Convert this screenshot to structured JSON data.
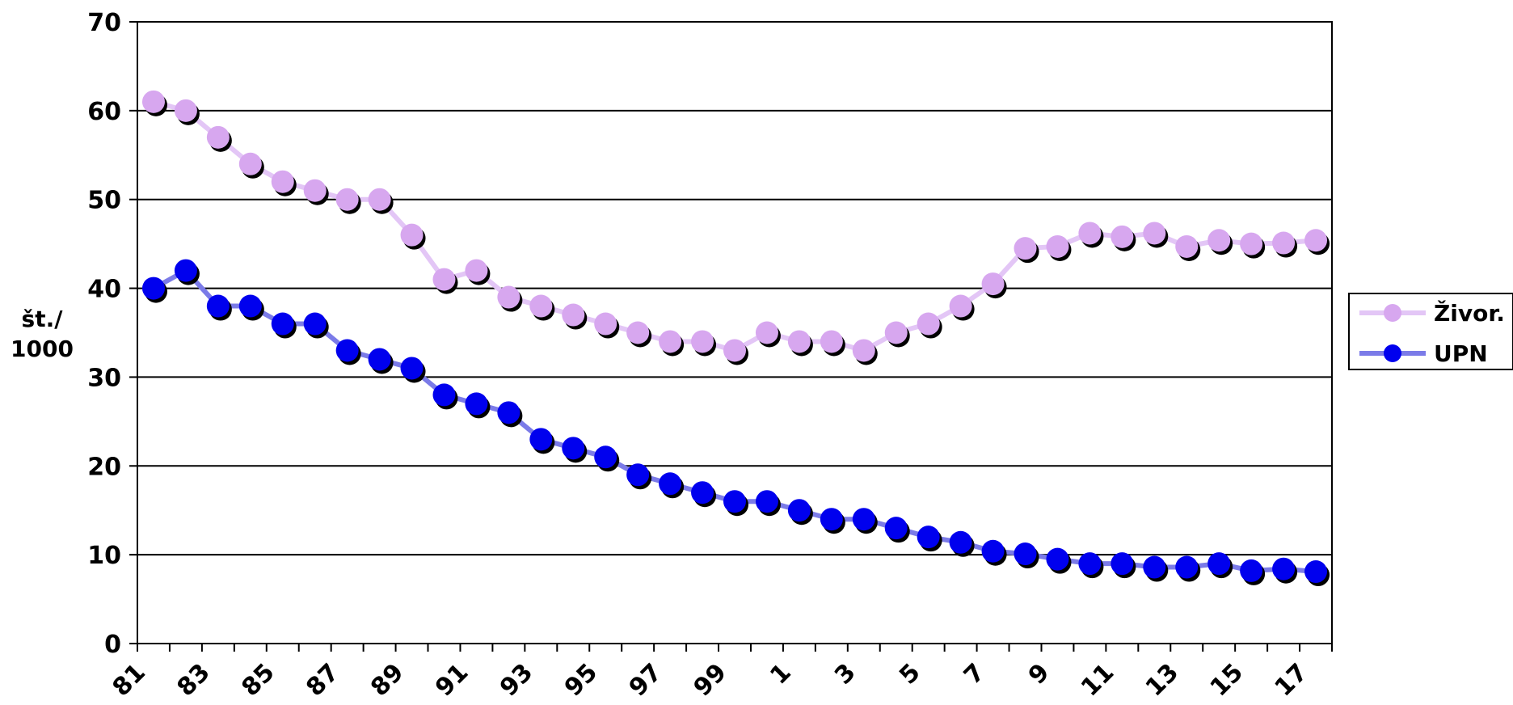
{
  "chart_data": {
    "type": "line",
    "title": "",
    "xlabel": "",
    "ylabel_lines": [
      "št./",
      "1000"
    ],
    "ylim": [
      0,
      70
    ],
    "yticks": [
      0,
      10,
      20,
      30,
      40,
      50,
      60,
      70
    ],
    "grid": true,
    "legend_position": "right",
    "x_tick_labels": [
      "81",
      "83",
      "85",
      "87",
      "89",
      "91",
      "93",
      "95",
      "97",
      "99",
      "1",
      "3",
      "5",
      "7",
      "9",
      "11",
      "13",
      "15",
      "17"
    ],
    "x": [
      "81",
      "82",
      "83",
      "84",
      "85",
      "86",
      "87",
      "88",
      "89",
      "90",
      "91",
      "92",
      "93",
      "94",
      "95",
      "96",
      "97",
      "98",
      "99",
      "00",
      "1",
      "2",
      "3",
      "4",
      "5",
      "6",
      "7",
      "8",
      "9",
      "10",
      "11",
      "12",
      "13",
      "14",
      "15",
      "16",
      "17"
    ],
    "series": [
      {
        "name": "Živor.",
        "color": "#e3c6f6",
        "marker_color": "#d7a7ef",
        "values": [
          61,
          60,
          57,
          54,
          52,
          51,
          50,
          50,
          46,
          41,
          42,
          39,
          38,
          37,
          36,
          35,
          34,
          34,
          33,
          35,
          34,
          34,
          33,
          35,
          36,
          38,
          40.5,
          44.5,
          44.7,
          46.2,
          45.8,
          46.2,
          44.7,
          45.4,
          45,
          45.1,
          45.4
        ]
      },
      {
        "name": "UPN",
        "color": "#7b7be8",
        "marker_color": "#0000ee",
        "values": [
          40,
          42,
          38,
          38,
          36,
          36,
          33,
          32,
          31,
          28,
          27,
          26,
          23,
          22,
          21,
          19,
          18,
          17,
          16,
          16,
          15,
          14,
          14,
          13,
          12,
          11.4,
          10.4,
          10.1,
          9.5,
          9,
          9,
          8.6,
          8.6,
          9,
          8.2,
          8.4,
          8.1
        ]
      }
    ]
  }
}
